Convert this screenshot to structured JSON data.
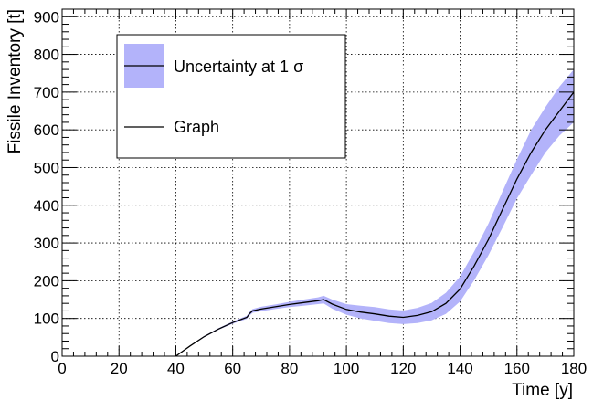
{
  "chart_data": {
    "type": "line",
    "xlabel": "Time [y]",
    "ylabel": "Fissile Inventory [t]",
    "xlim": [
      0,
      180
    ],
    "ylim": [
      0,
      920
    ],
    "x_ticks": [
      0,
      20,
      40,
      60,
      80,
      100,
      120,
      140,
      160,
      180
    ],
    "y_ticks": [
      0,
      100,
      200,
      300,
      400,
      500,
      600,
      700,
      800,
      900
    ],
    "grid": true,
    "legend_position": "top-left",
    "legend": [
      {
        "label": "Uncertainty at 1 σ",
        "kind": "band-with-line",
        "color": "#b3b3fa"
      },
      {
        "label": "Graph",
        "kind": "line",
        "color": "#000000"
      }
    ],
    "series": [
      {
        "name": "Graph",
        "x": [
          40,
          45,
          50,
          55,
          60,
          65,
          66,
          67,
          70,
          75,
          80,
          85,
          90,
          92,
          95,
          100,
          105,
          110,
          115,
          120,
          125,
          130,
          135,
          140,
          145,
          150,
          155,
          160,
          165,
          170,
          175,
          180
        ],
        "y": [
          0,
          27,
          52,
          72,
          89,
          103,
          113,
          120,
          125,
          131,
          137,
          142,
          147,
          150,
          138,
          124,
          117,
          112,
          106,
          103,
          108,
          118,
          140,
          178,
          240,
          310,
          390,
          470,
          540,
          600,
          650,
          700
        ]
      }
    ],
    "uncertainty_band": {
      "name": "Uncertainty at 1 σ",
      "x": [
        40,
        45,
        50,
        55,
        60,
        65,
        66,
        67,
        70,
        75,
        80,
        85,
        90,
        92,
        95,
        100,
        105,
        110,
        115,
        120,
        125,
        130,
        135,
        140,
        145,
        150,
        155,
        160,
        165,
        170,
        175,
        180
      ],
      "lower": [
        0,
        26,
        50,
        70,
        86,
        99,
        108,
        115,
        119,
        125,
        130,
        134,
        138,
        140,
        126,
        110,
        100,
        94,
        88,
        85,
        88,
        95,
        112,
        145,
        202,
        268,
        342,
        418,
        480,
        540,
        585,
        620
      ],
      "upper": [
        0,
        28,
        54,
        74,
        92,
        107,
        118,
        125,
        131,
        137,
        144,
        150,
        156,
        160,
        150,
        138,
        134,
        130,
        124,
        121,
        128,
        141,
        168,
        211,
        278,
        352,
        438,
        522,
        600,
        660,
        715,
        760
      ]
    }
  }
}
